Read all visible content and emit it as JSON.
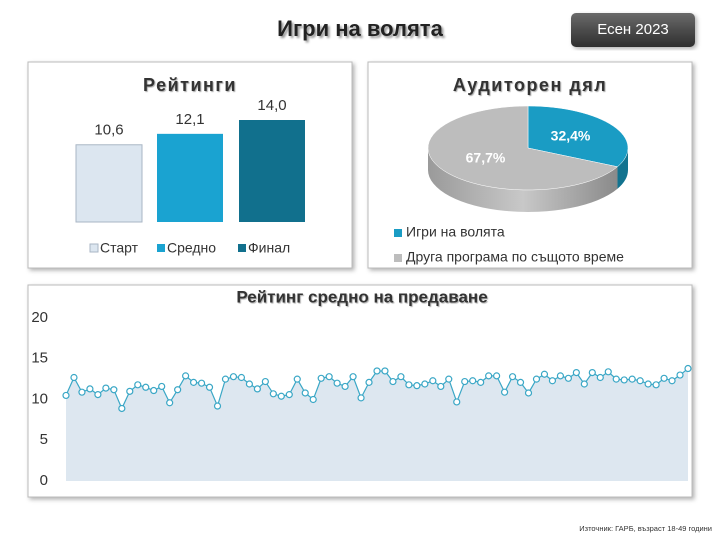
{
  "title": "Игри на волята",
  "badge": "Есен 2023",
  "source": "Източник: ГАРБ, възраст 18-49 години",
  "chart_data": [
    {
      "type": "bar",
      "title": "Рейтинги",
      "categories": [
        "Старт",
        "Средно",
        "Финал"
      ],
      "values": [
        10.6,
        12.1,
        14.0
      ],
      "value_labels": [
        "10,6",
        "12,1",
        "14,0"
      ],
      "colors": [
        "#dce6f0",
        "#1aa3d1",
        "#11708d"
      ]
    },
    {
      "type": "pie",
      "title": "Аудиторен дял",
      "categories": [
        "Игри на волята",
        "Друга програма по същото време"
      ],
      "values": [
        32.4,
        67.7
      ],
      "value_labels": [
        "32,4%",
        "67,7%"
      ],
      "colors": [
        "#1a9cc4",
        "#bdbdbd"
      ]
    },
    {
      "type": "line",
      "title": "Рейтинг средно на предаване",
      "values": [
        10.5,
        12.7,
        10.9,
        11.3,
        10.6,
        11.4,
        11.2,
        8.9,
        11.0,
        11.8,
        11.5,
        11.1,
        11.6,
        9.6,
        11.2,
        12.9,
        12.1,
        12.0,
        11.5,
        9.2,
        12.5,
        12.8,
        12.7,
        11.9,
        11.3,
        12.2,
        10.7,
        10.4,
        10.6,
        12.5,
        10.8,
        10.0,
        12.6,
        12.8,
        12.0,
        11.6,
        12.8,
        10.2,
        12.1,
        13.5,
        13.5,
        12.2,
        12.8,
        11.8,
        11.7,
        11.9,
        12.3,
        11.6,
        12.5,
        9.7,
        12.2,
        12.3,
        12.1,
        12.9,
        12.9,
        10.9,
        12.8,
        12.1,
        10.8,
        12.5,
        13.1,
        12.3,
        12.9,
        12.6,
        13.3,
        11.9,
        13.3,
        12.7,
        13.4,
        12.5,
        12.4,
        12.5,
        12.3,
        11.9,
        11.8,
        12.6,
        12.3,
        13.0,
        13.8
      ],
      "color": "#3aa7c6",
      "area_color": "#dde7f0",
      "ylim": [
        0,
        20
      ],
      "yticks": [
        0,
        5,
        10,
        15,
        20
      ]
    }
  ]
}
